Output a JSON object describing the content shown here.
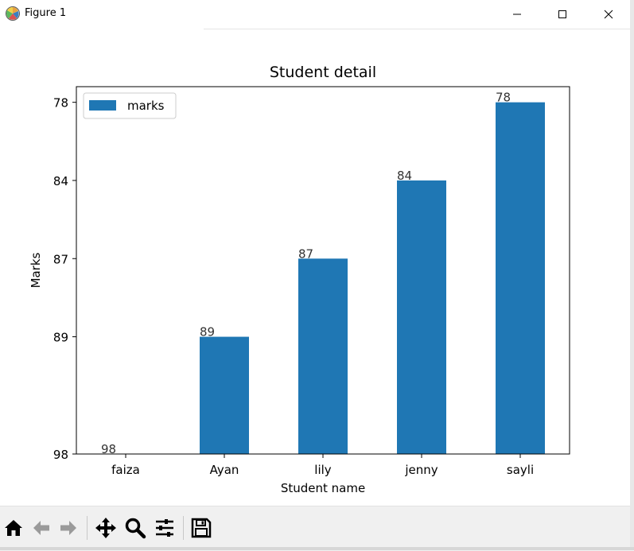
{
  "window": {
    "title": "Figure 1",
    "icon": "matplotlib-icon"
  },
  "toolbar": {
    "items": [
      "home-icon",
      "back-icon",
      "forward-icon",
      "pan-icon",
      "zoom-icon",
      "configure-subplots-icon",
      "save-icon"
    ]
  },
  "chart_data": {
    "type": "bar",
    "title": "Student detail",
    "xlabel": "Student name",
    "ylabel": "Marks",
    "categories": [
      "faiza",
      "Ayan",
      "lily",
      "jenny",
      "sayli"
    ],
    "series": [
      {
        "name": "marks",
        "values": [
          "98",
          "89",
          "87",
          "84",
          "78"
        ],
        "color": "#1f77b4"
      }
    ],
    "y_axis": {
      "type": "categorical",
      "tick_labels": [
        "98",
        "89",
        "87",
        "84",
        "78"
      ]
    },
    "data_labels": [
      "98",
      "89",
      "87",
      "84",
      "78"
    ],
    "legend": {
      "position": "upper-left",
      "labels": [
        "marks"
      ]
    },
    "grid": false
  }
}
